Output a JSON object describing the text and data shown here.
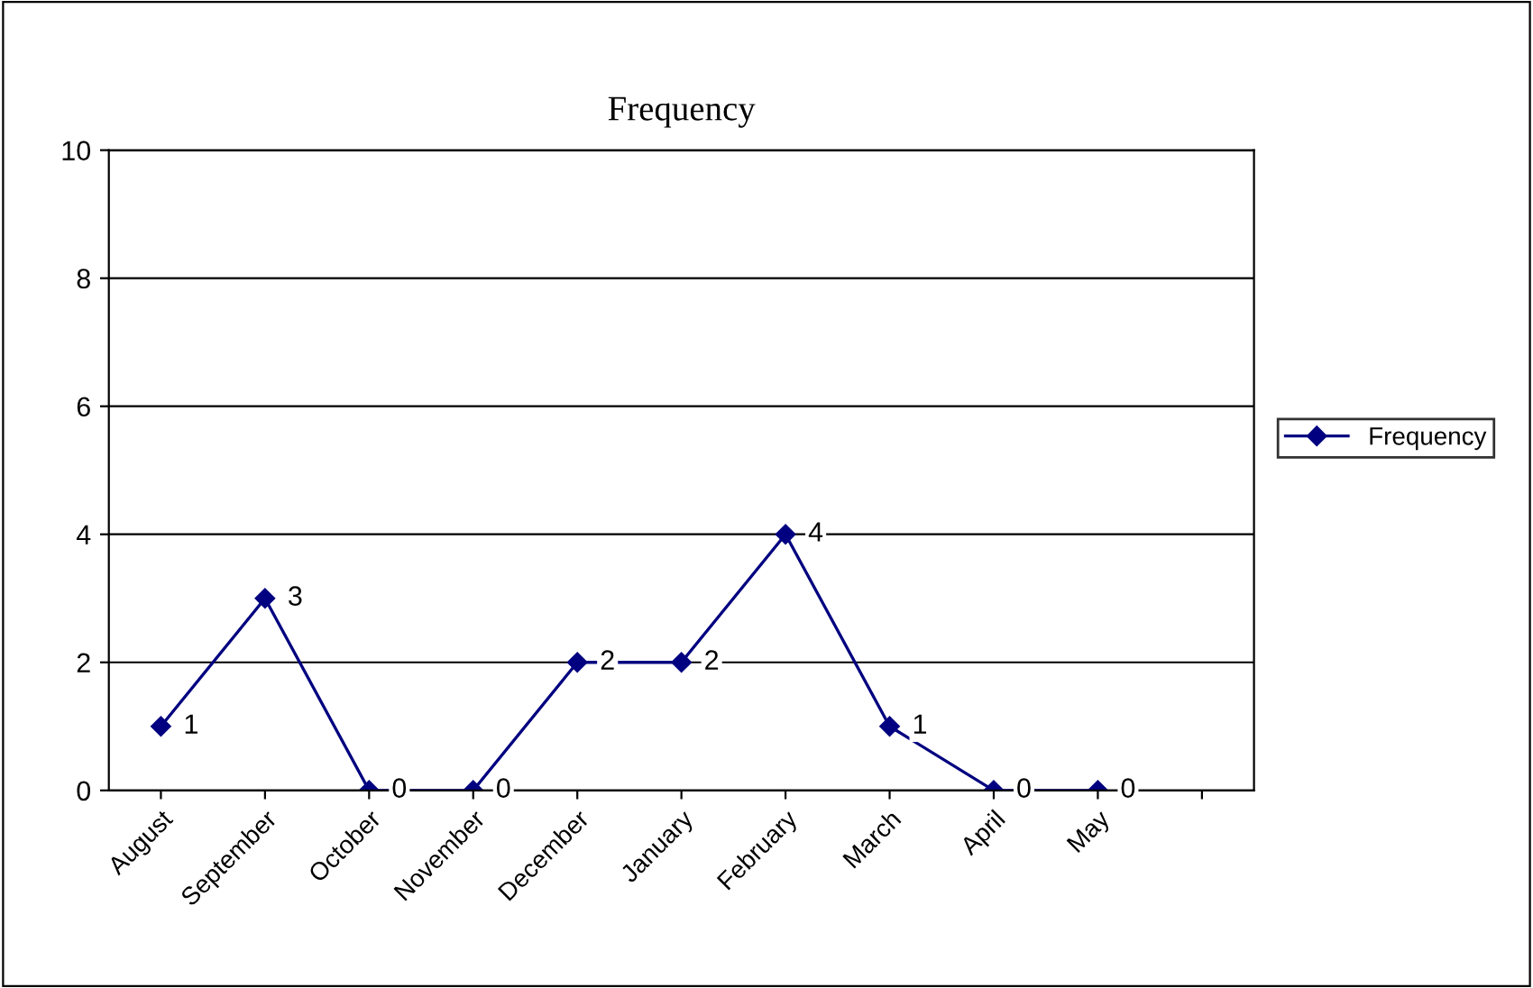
{
  "chart_data": {
    "type": "line",
    "title": "Frequency",
    "categories": [
      "August",
      "September",
      "October",
      "November",
      "December",
      "January",
      "February",
      "March",
      "April",
      "May",
      null
    ],
    "series": [
      {
        "name": "Frequency",
        "color": "#000080",
        "values": [
          1,
          3,
          0,
          0,
          2,
          2,
          4,
          1,
          0,
          0,
          null
        ]
      }
    ],
    "ylim": [
      0,
      10
    ],
    "yticks": [
      0,
      2,
      4,
      6,
      8,
      10
    ],
    "grid": "y",
    "legend": "right",
    "marker": "diamond",
    "line_style": "solid",
    "data_labels": true
  }
}
